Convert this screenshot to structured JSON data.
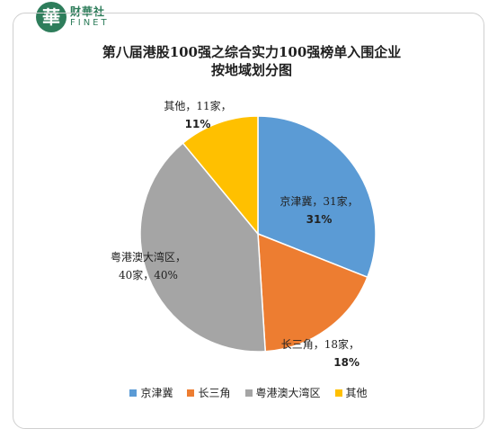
{
  "watermark": {
    "glyph": "華",
    "name": "财華社",
    "sub": "FINET"
  },
  "chart_data": {
    "type": "pie",
    "title": "第八届港股100强之综合实力100强榜单入围企业按地域划分图",
    "title_lines": [
      "第八届港股100强之综合实力100强榜单入围企业",
      "按地域划分图"
    ],
    "legend_position": "bottom",
    "slices": [
      {
        "name": "京津冀",
        "count": 31,
        "count_label": "31家",
        "percent": 31,
        "percent_label": "31%",
        "color": "#5b9bd5"
      },
      {
        "name": "长三角",
        "count": 18,
        "count_label": "18家",
        "percent": 18,
        "percent_label": "18%",
        "color": "#ed7d31"
      },
      {
        "name": "粤港澳大湾区",
        "count": 40,
        "count_label": "40家",
        "percent": 40,
        "percent_label": "40%",
        "color": "#a5a5a5"
      },
      {
        "name": "其他",
        "count": 11,
        "count_label": "11家",
        "percent": 11,
        "percent_label": "11%",
        "color": "#ffc000"
      }
    ]
  }
}
